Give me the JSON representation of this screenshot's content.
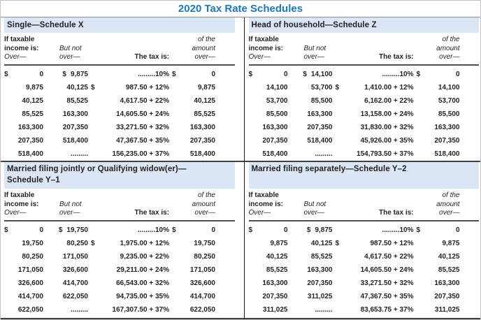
{
  "title": "2020 Tax Rate Schedules",
  "colors": {
    "title_blue": "#1b78be",
    "band_blue": "#dae6f3",
    "text_dark": "#231f20",
    "rule_dark": "#45474a",
    "bar_black": "#1a1b1c"
  },
  "column_headers": {
    "if_taxable": "If taxable",
    "income_is": "income is:",
    "over_label": "Over—",
    "but_not": "But not",
    "over2": "over—",
    "tax_is": "The tax is:",
    "of_the": "of the",
    "amount": "amount",
    "over3": "over—"
  },
  "schedules": [
    {
      "key": "single",
      "title_line1": "Single—Schedule X",
      "title_line2": "",
      "rows": [
        {
          "d1": "$",
          "over": "0",
          "d2": "$",
          "but": "9,875",
          "d3": "",
          "tax": ".........10%",
          "d4": "$",
          "amt": "0"
        },
        {
          "d1": "",
          "over": "9,875",
          "d2": "",
          "but": "40,125",
          "d3": "$",
          "tax": "987.50 + 12%",
          "d4": "",
          "amt": "9,875"
        },
        {
          "d1": "",
          "over": "40,125",
          "d2": "",
          "but": "85,525",
          "d3": "",
          "tax": "4,617.50 + 22%",
          "d4": "",
          "amt": "40,125"
        },
        {
          "d1": "",
          "over": "85,525",
          "d2": "",
          "but": "163,300",
          "d3": "",
          "tax": "14,605.50 + 24%",
          "d4": "",
          "amt": "85,525"
        },
        {
          "d1": "",
          "over": "163,300",
          "d2": "",
          "but": "207,350",
          "d3": "",
          "tax": "33,271.50 + 32%",
          "d4": "",
          "amt": "163,300"
        },
        {
          "d1": "",
          "over": "207,350",
          "d2": "",
          "but": "518,400",
          "d3": "",
          "tax": "47,367.50 + 35%",
          "d4": "",
          "amt": "207,350"
        },
        {
          "d1": "",
          "over": "518,400",
          "d2": "",
          "but": ".........",
          "d3": "",
          "tax": "156,235.00 + 37%",
          "d4": "",
          "amt": "518,400"
        }
      ]
    },
    {
      "key": "head_of_household",
      "title_line1": "Head of household—Schedule Z",
      "title_line2": "",
      "rows": [
        {
          "d1": "$",
          "over": "0",
          "d2": "$",
          "but": "14,100",
          "d3": "",
          "tax": ".........10%",
          "d4": "$",
          "amt": "0"
        },
        {
          "d1": "",
          "over": "14,100",
          "d2": "",
          "but": "53,700",
          "d3": "$",
          "tax": "1,410.00 + 12%",
          "d4": "",
          "amt": "14,100"
        },
        {
          "d1": "",
          "over": "53,700",
          "d2": "",
          "but": "85,500",
          "d3": "",
          "tax": "6,162.00 + 22%",
          "d4": "",
          "amt": "53,700"
        },
        {
          "d1": "",
          "over": "85,500",
          "d2": "",
          "but": "163,300",
          "d3": "",
          "tax": "13,158.00 + 24%",
          "d4": "",
          "amt": "85,500"
        },
        {
          "d1": "",
          "over": "163,300",
          "d2": "",
          "but": "207,350",
          "d3": "",
          "tax": "31,830.00 + 32%",
          "d4": "",
          "amt": "163,300"
        },
        {
          "d1": "",
          "over": "207,350",
          "d2": "",
          "but": "518,400",
          "d3": "",
          "tax": "45,926.00 + 35%",
          "d4": "",
          "amt": "207,350"
        },
        {
          "d1": "",
          "over": "518,400",
          "d2": "",
          "but": ".........",
          "d3": "",
          "tax": "154,793.50 + 37%",
          "d4": "",
          "amt": "518,400"
        }
      ]
    },
    {
      "key": "married_filing_jointly",
      "title_line1": "Married filing jointly or Qualifying widow(er)—",
      "title_line2": "Schedule Y–1",
      "rows": [
        {
          "d1": "$",
          "over": "0",
          "d2": "$",
          "but": "19,750",
          "d3": "",
          "tax": ".........10%",
          "d4": "$",
          "amt": "0"
        },
        {
          "d1": "",
          "over": "19,750",
          "d2": "",
          "but": "80,250",
          "d3": "$",
          "tax": "1,975.00 + 12%",
          "d4": "",
          "amt": "19,750"
        },
        {
          "d1": "",
          "over": "80,250",
          "d2": "",
          "but": "171,050",
          "d3": "",
          "tax": "9,235.00 + 22%",
          "d4": "",
          "amt": "80,250"
        },
        {
          "d1": "",
          "over": "171,050",
          "d2": "",
          "but": "326,600",
          "d3": "",
          "tax": "29,211.00 + 24%",
          "d4": "",
          "amt": "171,050"
        },
        {
          "d1": "",
          "over": "326,600",
          "d2": "",
          "but": "414,700",
          "d3": "",
          "tax": "66,543.00 + 32%",
          "d4": "",
          "amt": "326,600"
        },
        {
          "d1": "",
          "over": "414,700",
          "d2": "",
          "but": "622,050",
          "d3": "",
          "tax": "94,735.00 + 35%",
          "d4": "",
          "amt": "414,700"
        },
        {
          "d1": "",
          "over": "622,050",
          "d2": "",
          "but": ".........",
          "d3": "",
          "tax": "167,307.50 + 37%",
          "d4": "",
          "amt": "622,050"
        }
      ]
    },
    {
      "key": "married_filing_separately",
      "title_line1": "Married filing separately—Schedule Y–2",
      "title_line2": "",
      "rows": [
        {
          "d1": "$",
          "over": "0",
          "d2": "$",
          "but": "9,875",
          "d3": "",
          "tax": ".........10%",
          "d4": "$",
          "amt": "0"
        },
        {
          "d1": "",
          "over": "9,875",
          "d2": "",
          "but": "40,125",
          "d3": "$",
          "tax": "987.50 + 12%",
          "d4": "",
          "amt": "9,875"
        },
        {
          "d1": "",
          "over": "40,125",
          "d2": "",
          "but": "85,525",
          "d3": "",
          "tax": "4,617.50 + 22%",
          "d4": "",
          "amt": "40,125"
        },
        {
          "d1": "",
          "over": "85,525",
          "d2": "",
          "but": "163,300",
          "d3": "",
          "tax": "14,605.50 + 24%",
          "d4": "",
          "amt": "85,525"
        },
        {
          "d1": "",
          "over": "163,300",
          "d2": "",
          "but": "207,350",
          "d3": "",
          "tax": "33,271.50 + 32%",
          "d4": "",
          "amt": "163,300"
        },
        {
          "d1": "",
          "over": "207,350",
          "d2": "",
          "but": "311,025",
          "d3": "",
          "tax": "47,367.50 + 35%",
          "d4": "",
          "amt": "207,350"
        },
        {
          "d1": "",
          "over": "311,025",
          "d2": "",
          "but": ".........",
          "d3": "",
          "tax": "83,653.75 + 37%",
          "d4": "",
          "amt": "311,025"
        }
      ]
    }
  ]
}
